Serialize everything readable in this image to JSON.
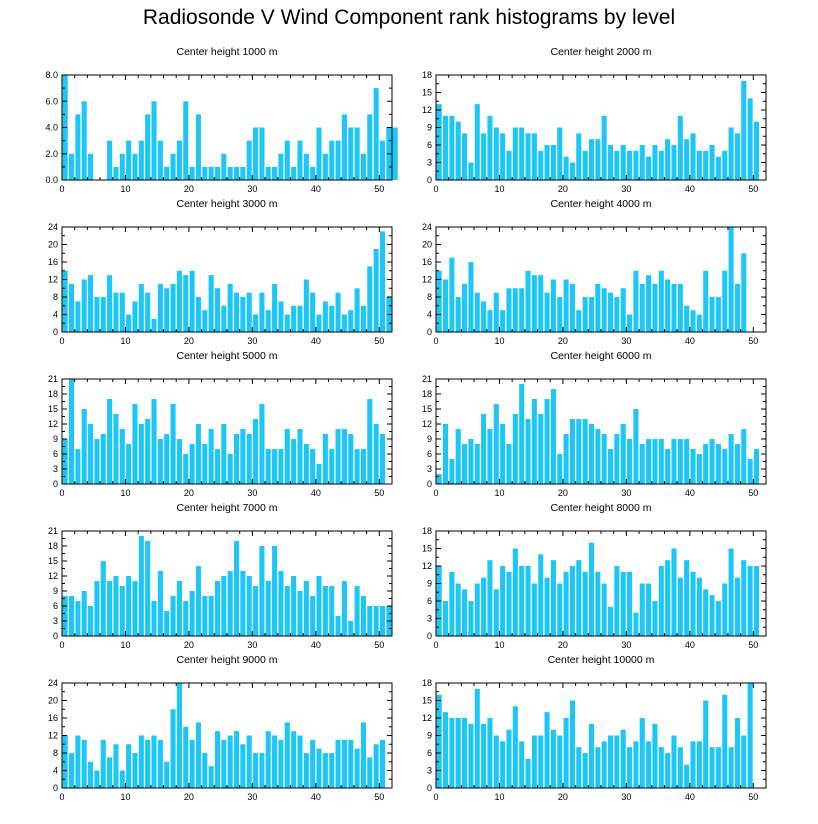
{
  "title": "Radiosonde V Wind Component rank histograms by level",
  "colors": {
    "bar": "#1cc6f7",
    "axis": "#000000",
    "background": "#ffffff"
  },
  "chart_data": [
    {
      "type": "bar",
      "title": "Center height 1000 m",
      "xlim": [
        0,
        52
      ],
      "ylim": [
        0,
        8
      ],
      "xticks": [
        0,
        10,
        20,
        30,
        40,
        50
      ],
      "xtick_labels": [
        "0",
        "10",
        "20",
        "30",
        "40",
        "50"
      ],
      "yticks": [
        0,
        2,
        4,
        6,
        8
      ],
      "ytick_labels": [
        "0.0",
        "2.0",
        "4.0",
        "6.0",
        "8.0"
      ],
      "y_side": "left",
      "values": [
        8,
        2,
        5,
        6,
        2,
        0,
        0,
        3,
        1,
        2,
        3,
        2,
        3,
        5,
        6,
        3,
        1,
        2,
        3,
        6,
        1,
        5,
        1,
        1,
        1,
        2,
        1,
        1,
        1,
        3,
        4,
        4,
        1,
        1,
        2,
        3,
        1,
        3,
        2,
        1,
        4,
        2,
        3,
        3,
        5,
        4,
        4,
        2,
        5,
        7,
        3,
        4,
        4
      ]
    },
    {
      "type": "bar",
      "title": "Center height 2000 m",
      "xlim": [
        0,
        52
      ],
      "ylim": [
        0,
        18
      ],
      "xticks": [
        0,
        10,
        20,
        30,
        40,
        50
      ],
      "xtick_labels": [
        "0",
        "10",
        "20",
        "30",
        "40",
        "50"
      ],
      "yticks": [
        0,
        3,
        6,
        9,
        12,
        15,
        18
      ],
      "ytick_labels": [
        "0",
        "3",
        "6",
        "9",
        "12",
        "15",
        "18"
      ],
      "y_side": "left",
      "values": [
        13,
        11,
        11,
        10,
        8,
        3,
        13,
        8,
        11,
        9,
        8,
        5,
        9,
        9,
        8,
        8,
        5,
        6,
        6,
        9,
        4,
        3,
        8,
        5,
        7,
        7,
        11,
        6,
        5,
        6,
        5,
        5,
        6,
        4,
        6,
        5,
        7,
        6,
        11,
        7,
        8,
        5,
        5,
        6,
        4,
        5,
        9,
        8,
        17,
        14,
        10
      ]
    },
    {
      "type": "bar",
      "title": "Center height 3000 m",
      "xlim": [
        0,
        52
      ],
      "ylim": [
        0,
        24
      ],
      "xticks": [
        0,
        10,
        20,
        30,
        40,
        50
      ],
      "xtick_labels": [
        "0",
        "10",
        "20",
        "30",
        "40",
        "50"
      ],
      "yticks": [
        0,
        4,
        8,
        12,
        16,
        20,
        24
      ],
      "ytick_labels": [
        "0",
        "4",
        "8",
        "12",
        "16",
        "20",
        "24"
      ],
      "y_side": "left",
      "values": [
        14,
        11,
        7,
        12,
        13,
        8,
        8,
        13,
        9,
        9,
        4,
        7,
        11,
        9,
        3,
        11,
        10,
        11,
        14,
        13,
        14,
        8,
        5,
        13,
        10,
        6,
        11,
        9,
        8,
        9,
        4,
        9,
        5,
        11,
        7,
        4,
        6,
        6,
        12,
        9,
        4,
        7,
        6,
        9,
        4,
        5,
        10,
        6,
        15,
        19,
        23,
        8
      ]
    },
    {
      "type": "bar",
      "title": "Center height 4000 m",
      "xlim": [
        0,
        52
      ],
      "ylim": [
        0,
        24
      ],
      "xticks": [
        0,
        10,
        20,
        30,
        40,
        50
      ],
      "xtick_labels": [
        "0",
        "10",
        "20",
        "30",
        "40",
        "50"
      ],
      "yticks": [
        0,
        4,
        8,
        12,
        16,
        20,
        24
      ],
      "ytick_labels": [
        "0",
        "4",
        "8",
        "12",
        "16",
        "20",
        "24"
      ],
      "y_side": "left",
      "values": [
        14,
        12,
        17,
        8,
        11,
        16,
        9,
        7,
        5,
        9,
        5,
        10,
        10,
        10,
        14,
        13,
        13,
        9,
        12,
        8,
        12,
        11,
        5,
        8,
        8,
        11,
        10,
        9,
        8,
        10,
        4,
        14,
        11,
        13,
        11,
        14,
        12,
        11,
        11,
        6,
        5,
        4,
        14,
        8,
        8,
        14,
        24,
        11,
        18
      ]
    },
    {
      "type": "bar",
      "title": "Center height 5000 m",
      "xlim": [
        0,
        52
      ],
      "ylim": [
        0,
        21
      ],
      "xticks": [
        0,
        10,
        20,
        30,
        40,
        50
      ],
      "xtick_labels": [
        "0",
        "10",
        "20",
        "30",
        "40",
        "50"
      ],
      "yticks": [
        0,
        3,
        6,
        9,
        12,
        15,
        18,
        21
      ],
      "ytick_labels": [
        "0",
        "3",
        "6",
        "9",
        "12",
        "15",
        "18",
        "21"
      ],
      "y_side": "left",
      "values": [
        9,
        21,
        7,
        15,
        12,
        9,
        10,
        17,
        14,
        11,
        8,
        16,
        12,
        13,
        17,
        9,
        10,
        16,
        9,
        6,
        8,
        12,
        8,
        11,
        7,
        12,
        6,
        10,
        11,
        10,
        13,
        16,
        7,
        7,
        7,
        11,
        9,
        11,
        8,
        7,
        4,
        10,
        7,
        11,
        11,
        10,
        7,
        7,
        17,
        12,
        10
      ]
    },
    {
      "type": "bar",
      "title": "Center height 6000 m",
      "xlim": [
        0,
        52
      ],
      "ylim": [
        0,
        21
      ],
      "xticks": [
        0,
        10,
        20,
        30,
        40,
        50
      ],
      "xtick_labels": [
        "0",
        "10",
        "20",
        "30",
        "40",
        "50"
      ],
      "yticks": [
        0,
        3,
        6,
        9,
        12,
        15,
        18,
        21
      ],
      "ytick_labels": [
        "0",
        "3",
        "6",
        "9",
        "12",
        "15",
        "18",
        "21"
      ],
      "y_side": "left",
      "values": [
        2,
        12,
        5,
        11,
        8,
        9,
        8,
        14,
        11,
        16,
        12,
        8,
        14,
        20,
        13,
        17,
        14,
        17,
        19,
        6,
        10,
        13,
        13,
        13,
        12,
        11,
        10,
        7,
        10,
        12,
        9,
        15,
        8,
        9,
        9,
        9,
        7,
        9,
        9,
        9,
        7,
        6,
        8,
        9,
        8,
        7,
        10,
        8,
        11,
        5,
        7
      ]
    },
    {
      "type": "bar",
      "title": "Center height 7000 m",
      "xlim": [
        0,
        52
      ],
      "ylim": [
        0,
        21
      ],
      "xticks": [
        0,
        10,
        20,
        30,
        40,
        50
      ],
      "xtick_labels": [
        "0",
        "10",
        "20",
        "30",
        "40",
        "50"
      ],
      "yticks": [
        0,
        3,
        6,
        9,
        12,
        15,
        18,
        21
      ],
      "ytick_labels": [
        "0",
        "3",
        "6",
        "9",
        "12",
        "15",
        "18",
        "21"
      ],
      "y_side": "left",
      "values": [
        8,
        8,
        7,
        9,
        6,
        11,
        15,
        11,
        12,
        10,
        12,
        11,
        20,
        19,
        7,
        13,
        5,
        8,
        11,
        7,
        9,
        14,
        8,
        8,
        11,
        12,
        13,
        19,
        13,
        12,
        10,
        18,
        11,
        18,
        13,
        10,
        12,
        9,
        11,
        8,
        12,
        10,
        10,
        4,
        11,
        3,
        10,
        8,
        6,
        6,
        6,
        6
      ]
    },
    {
      "type": "bar",
      "title": "Center height 8000 m",
      "xlim": [
        0,
        52
      ],
      "ylim": [
        0,
        18
      ],
      "xticks": [
        0,
        10,
        20,
        30,
        40,
        50
      ],
      "xtick_labels": [
        "0",
        "10",
        "20",
        "30",
        "40",
        "50"
      ],
      "yticks": [
        0,
        3,
        6,
        9,
        12,
        15,
        18
      ],
      "ytick_labels": [
        "0",
        "3",
        "6",
        "9",
        "12",
        "15",
        "18"
      ],
      "y_side": "left",
      "values": [
        12,
        6,
        11,
        9,
        8,
        6,
        9,
        10,
        13,
        8,
        12,
        11,
        15,
        12,
        12,
        9,
        14,
        10,
        13,
        9,
        11,
        12,
        13,
        11,
        16,
        11,
        9,
        5,
        12,
        11,
        11,
        4,
        9,
        9,
        6,
        12,
        13,
        15,
        10,
        13,
        11,
        10,
        8,
        7,
        6,
        9,
        15,
        10,
        13,
        12,
        12
      ]
    },
    {
      "type": "bar",
      "title": "Center height 9000 m",
      "xlim": [
        0,
        52
      ],
      "ylim": [
        0,
        24
      ],
      "xticks": [
        0,
        10,
        20,
        30,
        40,
        50
      ],
      "xtick_labels": [
        "0",
        "10",
        "20",
        "30",
        "40",
        "50"
      ],
      "yticks": [
        0,
        4,
        8,
        12,
        16,
        20,
        24
      ],
      "ytick_labels": [
        "0",
        "4",
        "8",
        "12",
        "16",
        "20",
        "24"
      ],
      "y_side": "left",
      "values": [
        12,
        8,
        12,
        11,
        6,
        4,
        11,
        7,
        10,
        4,
        10,
        8,
        12,
        11,
        12,
        11,
        6,
        18,
        24,
        14,
        11,
        15,
        8,
        5,
        13,
        11,
        12,
        13,
        10,
        12,
        8,
        8,
        13,
        12,
        11,
        15,
        13,
        12,
        8,
        11,
        9,
        8,
        8,
        11,
        11,
        11,
        9,
        15,
        7,
        10,
        11
      ]
    },
    {
      "type": "bar",
      "title": "Center height 10000 m",
      "xlim": [
        0,
        52
      ],
      "ylim": [
        0,
        18
      ],
      "xticks": [
        0,
        10,
        20,
        30,
        40,
        50
      ],
      "xtick_labels": [
        "0",
        "10",
        "20",
        "30",
        "40",
        "50"
      ],
      "yticks": [
        0,
        3,
        6,
        9,
        12,
        15,
        18
      ],
      "ytick_labels": [
        "0",
        "3",
        "6",
        "9",
        "12",
        "15",
        "18"
      ],
      "y_side": "left",
      "values": [
        16,
        13,
        12,
        12,
        12,
        11,
        17,
        11,
        12,
        9,
        8,
        10,
        14,
        8,
        5,
        9,
        9,
        13,
        10,
        9,
        12,
        15,
        7,
        6,
        11,
        7,
        8,
        9,
        9,
        10,
        7,
        8,
        12,
        8,
        11,
        7,
        6,
        9,
        7,
        4,
        8,
        8,
        15,
        7,
        7,
        16,
        7,
        12,
        9,
        18
      ]
    }
  ]
}
